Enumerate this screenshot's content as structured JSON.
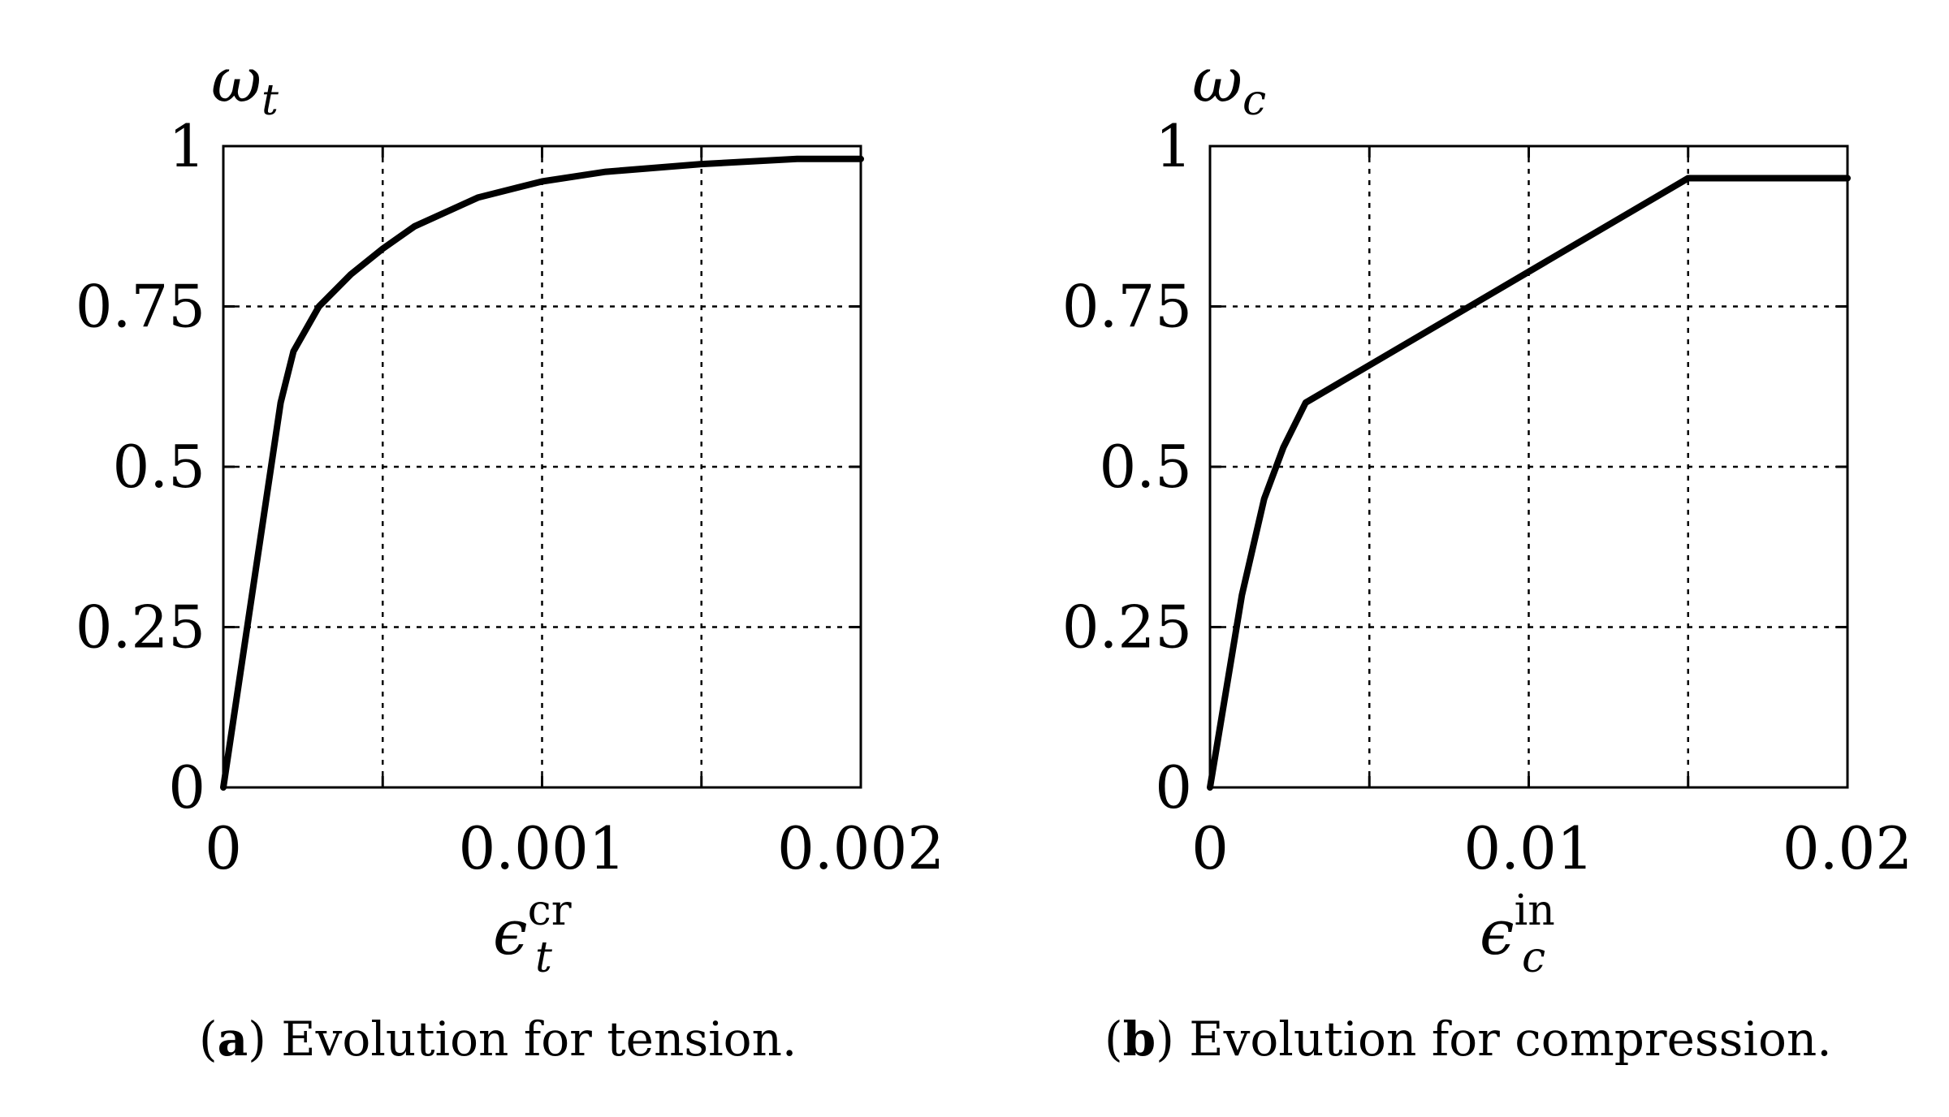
{
  "chart_data": [
    {
      "id": "a",
      "type": "line",
      "ylabel": {
        "base": "ω",
        "sub": "t"
      },
      "xlabel": {
        "base": "ϵ",
        "sub": "t",
        "sup": "cr"
      },
      "xlim": [
        0,
        0.002
      ],
      "ylim": [
        0,
        1
      ],
      "grid": true,
      "xticks": [
        0,
        0.0005,
        0.001,
        0.0015,
        0.002
      ],
      "yticks": [
        0,
        0.25,
        0.5,
        0.75,
        1
      ],
      "xtick_labels": [
        {
          "value": 0,
          "label": "0"
        },
        {
          "value": 0.001,
          "label": "0.001"
        },
        {
          "value": 0.002,
          "label": "0.002"
        }
      ],
      "ytick_labels": [
        {
          "value": 0,
          "label": "0"
        },
        {
          "value": 0.25,
          "label": "0.25"
        },
        {
          "value": 0.5,
          "label": "0.5"
        },
        {
          "value": 0.75,
          "label": "0.75"
        },
        {
          "value": 1,
          "label": "1"
        }
      ],
      "series": [
        {
          "name": "omega_t",
          "x": [
            0,
            0.00018,
            0.00022,
            0.0003,
            0.0004,
            0.0005,
            0.0006,
            0.0008,
            0.001,
            0.0012,
            0.0015,
            0.0018,
            0.002
          ],
          "y": [
            0,
            0.6,
            0.68,
            0.75,
            0.8,
            0.84,
            0.875,
            0.92,
            0.945,
            0.96,
            0.972,
            0.98,
            0.98
          ]
        }
      ],
      "caption": {
        "label": "a",
        "text": "Evolution for tension."
      }
    },
    {
      "id": "b",
      "type": "line",
      "ylabel": {
        "base": "ω",
        "sub": "c"
      },
      "xlabel": {
        "base": "ϵ",
        "sub": "c",
        "sup": "in"
      },
      "xlim": [
        0,
        0.02
      ],
      "ylim": [
        0,
        1
      ],
      "grid": true,
      "xticks": [
        0,
        0.005,
        0.01,
        0.015,
        0.02
      ],
      "yticks": [
        0,
        0.25,
        0.5,
        0.75,
        1
      ],
      "xtick_labels": [
        {
          "value": 0,
          "label": "0"
        },
        {
          "value": 0.01,
          "label": "0.01"
        },
        {
          "value": 0.02,
          "label": "0.02"
        }
      ],
      "ytick_labels": [
        {
          "value": 0,
          "label": "0"
        },
        {
          "value": 0.25,
          "label": "0.25"
        },
        {
          "value": 0.5,
          "label": "0.5"
        },
        {
          "value": 0.75,
          "label": "0.75"
        },
        {
          "value": 1,
          "label": "1"
        }
      ],
      "series": [
        {
          "name": "omega_c",
          "x": [
            0,
            0.001,
            0.0017,
            0.0023,
            0.003,
            0.015,
            0.02
          ],
          "y": [
            0,
            0.3,
            0.45,
            0.53,
            0.6,
            0.95,
            0.95
          ]
        }
      ],
      "caption": {
        "label": "b",
        "text": "Evolution for compression."
      }
    }
  ]
}
